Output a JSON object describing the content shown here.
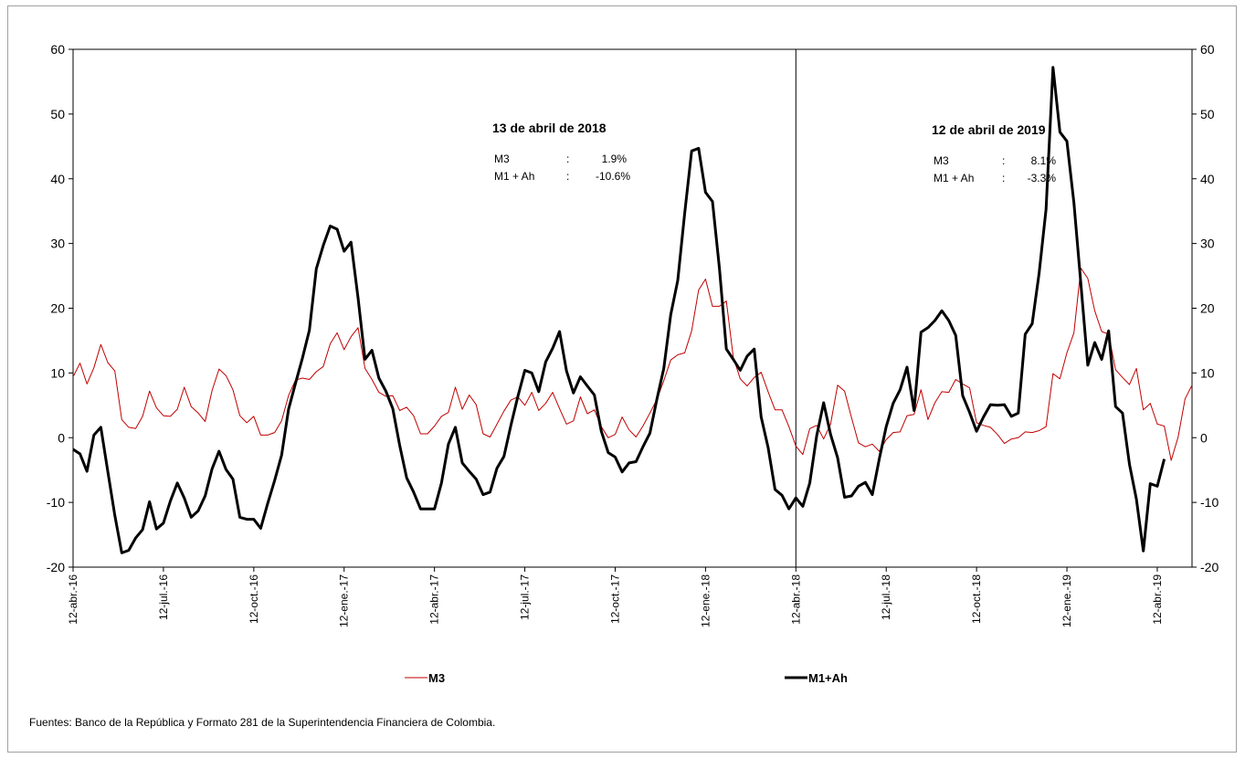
{
  "chart_data": {
    "type": "line",
    "ylim": [
      -20,
      60
    ],
    "yticks": [
      -20,
      -10,
      0,
      10,
      20,
      30,
      40,
      50,
      60
    ],
    "ytick_labels": [
      "-20",
      "-10",
      "0",
      "10",
      "20",
      "30",
      "40",
      "50",
      "60"
    ],
    "secondary_axis": true,
    "grid": false,
    "legend_position": "bottom",
    "x_tick_labels": [
      "12-abr.-16",
      "12-jul.-16",
      "12-oct.-16",
      "12-ene.-17",
      "12-abr.-17",
      "12-jul.-17",
      "12-oct.-17",
      "12-ene.-18",
      "12-abr.-18",
      "12-jul.-18",
      "12-oct.-18",
      "12-ene.-19",
      "12-abr.-19"
    ],
    "weeks_per_tick": 13,
    "marker_line_label": "12-abr.-18",
    "series": [
      {
        "name": "M3",
        "color": "#c00000",
        "width": 1,
        "values": [
          9.4,
          11.5,
          8.3,
          10.8,
          14.4,
          11.6,
          10.3,
          2.8,
          1.6,
          1.4,
          3.3,
          7.2,
          4.6,
          3.4,
          3.3,
          4.4,
          7.8,
          4.8,
          3.8,
          2.5,
          7.3,
          10.6,
          9.6,
          7.4,
          3.4,
          2.3,
          3.3,
          0.4,
          0.4,
          0.8,
          2.6,
          6.5,
          8.9,
          9.2,
          9.0,
          10.2,
          11.0,
          14.5,
          16.2,
          13.6,
          15.6,
          17.0,
          10.7,
          9.0,
          7.0,
          6.4,
          6.5,
          4.2,
          4.7,
          3.4,
          0.6,
          0.6,
          1.8,
          3.3,
          3.9,
          7.8,
          4.4,
          6.6,
          5.1,
          0.6,
          0.1,
          2.1,
          4.1,
          5.8,
          6.3,
          5.0,
          7.0,
          4.2,
          5.3,
          7.0,
          4.5,
          2.1,
          2.6,
          6.3,
          3.7,
          4.3,
          1.7,
          0.0,
          0.5,
          3.2,
          1.2,
          0.1,
          1.8,
          3.8,
          5.9,
          8.8,
          12.0,
          12.8,
          13.1,
          16.5,
          22.8,
          24.5,
          20.3,
          20.3,
          21.1,
          12.4,
          9.1,
          8.0,
          9.3,
          10.1,
          7.1,
          4.3,
          4.3,
          1.7,
          -1.3,
          -2.6,
          1.4,
          1.9,
          -0.2,
          2.1,
          8.1,
          7.2,
          3.1,
          -0.8,
          -1.4,
          -1.0,
          -2.1,
          -0.3,
          0.8,
          0.9,
          3.4,
          3.6,
          7.4,
          2.8,
          5.4,
          7.1,
          7.0,
          9.0,
          8.3,
          7.7,
          2.3,
          1.9,
          1.6,
          0.5,
          -0.9,
          -0.2,
          0.0,
          0.9,
          0.8,
          1.1,
          1.7,
          9.9,
          9.1,
          13.1,
          16.2,
          26.2,
          24.6,
          19.6,
          16.4,
          16.0,
          10.5,
          9.3,
          8.2,
          10.7,
          4.3,
          5.3,
          2.1,
          1.8,
          -3.5,
          0.1,
          6.0,
          8.1
        ]
      },
      {
        "name": "M1+Ah",
        "color": "#000000",
        "width": 3,
        "values": [
          -1.8,
          -2.5,
          -5.2,
          0.4,
          1.6,
          -5.2,
          -12.0,
          -17.8,
          -17.4,
          -15.5,
          -14.2,
          -9.9,
          -14.1,
          -13.2,
          -9.8,
          -7.0,
          -9.3,
          -12.3,
          -11.3,
          -9.0,
          -4.8,
          -2.1,
          -4.9,
          -6.4,
          -12.3,
          -12.6,
          -12.6,
          -14.0,
          -10.2,
          -6.6,
          -2.7,
          4.4,
          8.4,
          12.3,
          16.6,
          26.1,
          29.7,
          32.7,
          32.2,
          28.8,
          30.2,
          21.6,
          12.1,
          13.5,
          9.2,
          7.2,
          4.5,
          -1.2,
          -6.2,
          -8.4,
          -11.0,
          -11.0,
          -11.0,
          -7.0,
          -1.0,
          1.6,
          -3.9,
          -5.2,
          -6.4,
          -8.8,
          -8.4,
          -4.7,
          -2.9,
          1.9,
          6.4,
          10.4,
          10.0,
          7.1,
          11.7,
          13.8,
          16.4,
          10.3,
          6.9,
          9.4,
          8.0,
          6.6,
          1.0,
          -2.3,
          -3.0,
          -5.3,
          -3.9,
          -3.7,
          -1.4,
          0.7,
          5.9,
          10.7,
          19.0,
          24.3,
          34.7,
          44.3,
          44.7,
          37.9,
          36.5,
          26.2,
          13.7,
          12.1,
          10.4,
          12.6,
          13.7,
          3.2,
          -1.5,
          -8.0,
          -8.9,
          -11.0,
          -9.3,
          -10.6,
          -7.0,
          0.3,
          5.4,
          0.5,
          -3.1,
          -9.2,
          -9.0,
          -7.5,
          -6.9,
          -8.8,
          -3.3,
          1.7,
          5.3,
          7.4,
          10.9,
          4.2,
          16.3,
          17.0,
          18.1,
          19.6,
          18.1,
          15.8,
          6.5,
          3.9,
          1.0,
          3.2,
          5.1,
          5.0,
          5.1,
          3.3,
          3.8,
          16.0,
          17.6,
          25.4,
          35.3,
          57.2,
          47.2,
          45.8,
          36.3,
          23.8,
          11.2,
          14.7,
          12.1,
          16.5,
          4.8,
          3.8,
          -4.1,
          -9.5,
          -17.5,
          -7.1,
          -7.5,
          -3.3
        ]
      }
    ],
    "annotations": [
      {
        "title": "13 de abril de 2018",
        "rows": [
          {
            "label": "M3",
            "sep": ":",
            "value": "1.9%"
          },
          {
            "label": "M1 + Ah",
            "sep": ":",
            "value": "-10.6%"
          }
        ]
      },
      {
        "title": "12 de abril de 2019",
        "rows": [
          {
            "label": "M3",
            "sep": ":",
            "value": "8.1%"
          },
          {
            "label": "M1 + Ah",
            "sep": ":",
            "value": "-3.3%"
          }
        ]
      }
    ]
  },
  "legend": {
    "m3_label": "M3",
    "m1ah_label": "M1+Ah"
  },
  "source_note": "Fuentes: Banco de la República y Formato 281 de la Superintendencia Financiera de Colombia."
}
